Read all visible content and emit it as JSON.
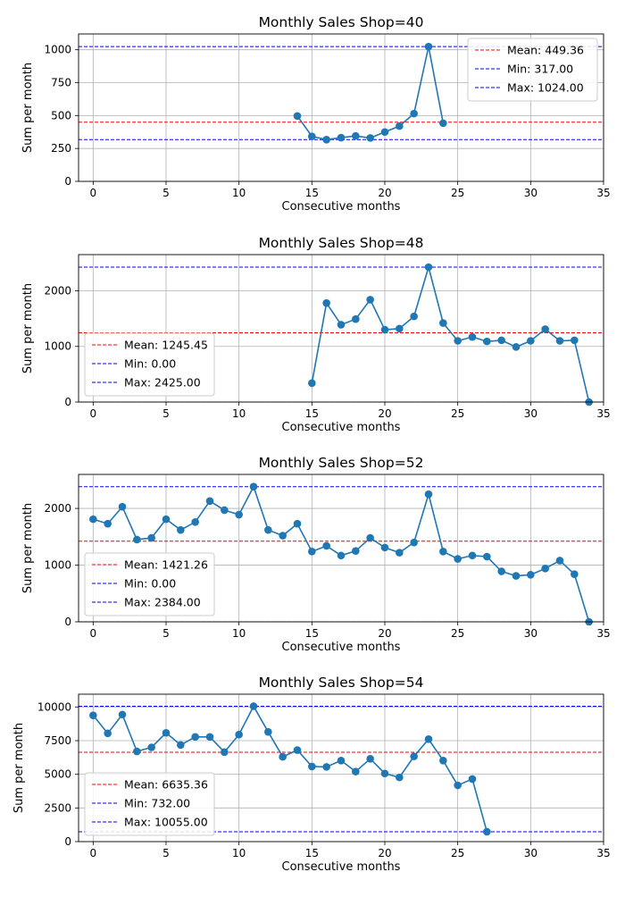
{
  "chart_data": [
    {
      "type": "line",
      "title": "Monthly Sales Shop=40",
      "xlabel": "Consecutive months",
      "ylabel": "Sum per month",
      "xlim": [
        -1,
        35
      ],
      "ylim": [
        0,
        1120
      ],
      "xticks": [
        0,
        5,
        10,
        15,
        20,
        25,
        30,
        35
      ],
      "yticks": [
        0,
        250,
        500,
        750,
        1000
      ],
      "grid": true,
      "legend_position": "top-right",
      "series": [
        {
          "x": [
            14,
            15,
            16,
            17,
            18,
            19,
            20,
            21,
            22,
            23,
            24
          ],
          "y": [
            497,
            342,
            317,
            332,
            345,
            330,
            375,
            420,
            515,
            1024,
            442
          ]
        }
      ],
      "reference_lines": [
        {
          "label": "Mean: 449.36",
          "value": 449.36,
          "color": "#ff0000"
        },
        {
          "label": "Min: 317.00",
          "value": 317.0,
          "color": "#0000ff"
        },
        {
          "label": "Max: 1024.00",
          "value": 1024.0,
          "color": "#0000ff"
        }
      ]
    },
    {
      "type": "line",
      "title": "Monthly Sales Shop=48",
      "xlabel": "Consecutive months",
      "ylabel": "Sum per month",
      "xlim": [
        -1,
        35
      ],
      "ylim": [
        0,
        2650
      ],
      "xticks": [
        0,
        5,
        10,
        15,
        20,
        25,
        30,
        35
      ],
      "yticks": [
        0,
        1000,
        2000
      ],
      "grid": true,
      "legend_position": "lower-left",
      "series": [
        {
          "x": [
            15,
            16,
            17,
            18,
            19,
            20,
            21,
            22,
            23,
            24,
            25,
            26,
            27,
            28,
            29,
            30,
            31,
            32,
            33,
            34
          ],
          "y": [
            340,
            1780,
            1390,
            1490,
            1840,
            1300,
            1320,
            1540,
            2425,
            1420,
            1100,
            1170,
            1090,
            1110,
            990,
            1100,
            1310,
            1100,
            1110,
            0
          ]
        }
      ],
      "reference_lines": [
        {
          "label": "Mean: 1245.45",
          "value": 1245.45,
          "color": "#ff0000"
        },
        {
          "label": "Min: 0.00",
          "value": 0.0,
          "color": "#0000ff"
        },
        {
          "label": "Max: 2425.00",
          "value": 2425.0,
          "color": "#0000ff"
        }
      ]
    },
    {
      "type": "line",
      "title": "Monthly Sales Shop=52",
      "xlabel": "Consecutive months",
      "ylabel": "Sum per month",
      "xlim": [
        -1,
        35
      ],
      "ylim": [
        0,
        2600
      ],
      "xticks": [
        0,
        5,
        10,
        15,
        20,
        25,
        30,
        35
      ],
      "yticks": [
        0,
        1000,
        2000
      ],
      "grid": true,
      "legend_position": "lower-left",
      "series": [
        {
          "x": [
            0,
            1,
            2,
            3,
            4,
            5,
            6,
            7,
            8,
            9,
            10,
            11,
            12,
            13,
            14,
            15,
            16,
            17,
            18,
            19,
            20,
            21,
            22,
            23,
            24,
            25,
            26,
            27,
            28,
            29,
            30,
            31,
            32,
            33,
            34
          ],
          "y": [
            1810,
            1730,
            2030,
            1450,
            1480,
            1810,
            1620,
            1760,
            2130,
            1970,
            1890,
            2384,
            1620,
            1520,
            1730,
            1240,
            1340,
            1170,
            1250,
            1480,
            1310,
            1220,
            1400,
            2250,
            1240,
            1110,
            1170,
            1150,
            890,
            810,
            830,
            940,
            1080,
            840,
            0
          ]
        }
      ],
      "reference_lines": [
        {
          "label": "Mean: 1421.26",
          "value": 1421.26,
          "color": "#ff0000"
        },
        {
          "label": "Min: 0.00",
          "value": 0.0,
          "color": "#0000ff"
        },
        {
          "label": "Max: 2384.00",
          "value": 2384.0,
          "color": "#0000ff"
        }
      ]
    },
    {
      "type": "line",
      "title": "Monthly Sales Shop=54",
      "xlabel": "Consecutive months",
      "ylabel": "Sum per month",
      "xlim": [
        -1,
        35
      ],
      "ylim": [
        0,
        10950
      ],
      "xticks": [
        0,
        5,
        10,
        15,
        20,
        25,
        30,
        35
      ],
      "yticks": [
        0,
        2500,
        5000,
        7500,
        10000
      ],
      "grid": true,
      "legend_position": "lower-left",
      "series": [
        {
          "x": [
            0,
            1,
            2,
            3,
            4,
            5,
            6,
            7,
            8,
            9,
            10,
            11,
            12,
            13,
            14,
            15,
            16,
            17,
            18,
            19,
            20,
            21,
            22,
            23,
            24,
            25,
            26,
            27
          ],
          "y": [
            9380,
            8040,
            9440,
            6700,
            7000,
            8080,
            7180,
            7780,
            7780,
            6650,
            7950,
            10055,
            8150,
            6300,
            6800,
            5580,
            5550,
            6020,
            5200,
            6150,
            5060,
            4770,
            6330,
            7610,
            6020,
            4180,
            4650,
            732
          ]
        }
      ],
      "reference_lines": [
        {
          "label": "Mean: 6635.36",
          "value": 6635.36,
          "color": "#ff0000"
        },
        {
          "label": "Min: 732.00",
          "value": 732.0,
          "color": "#0000ff"
        },
        {
          "label": "Max: 10055.00",
          "value": 10055.0,
          "color": "#0000ff"
        }
      ]
    }
  ]
}
